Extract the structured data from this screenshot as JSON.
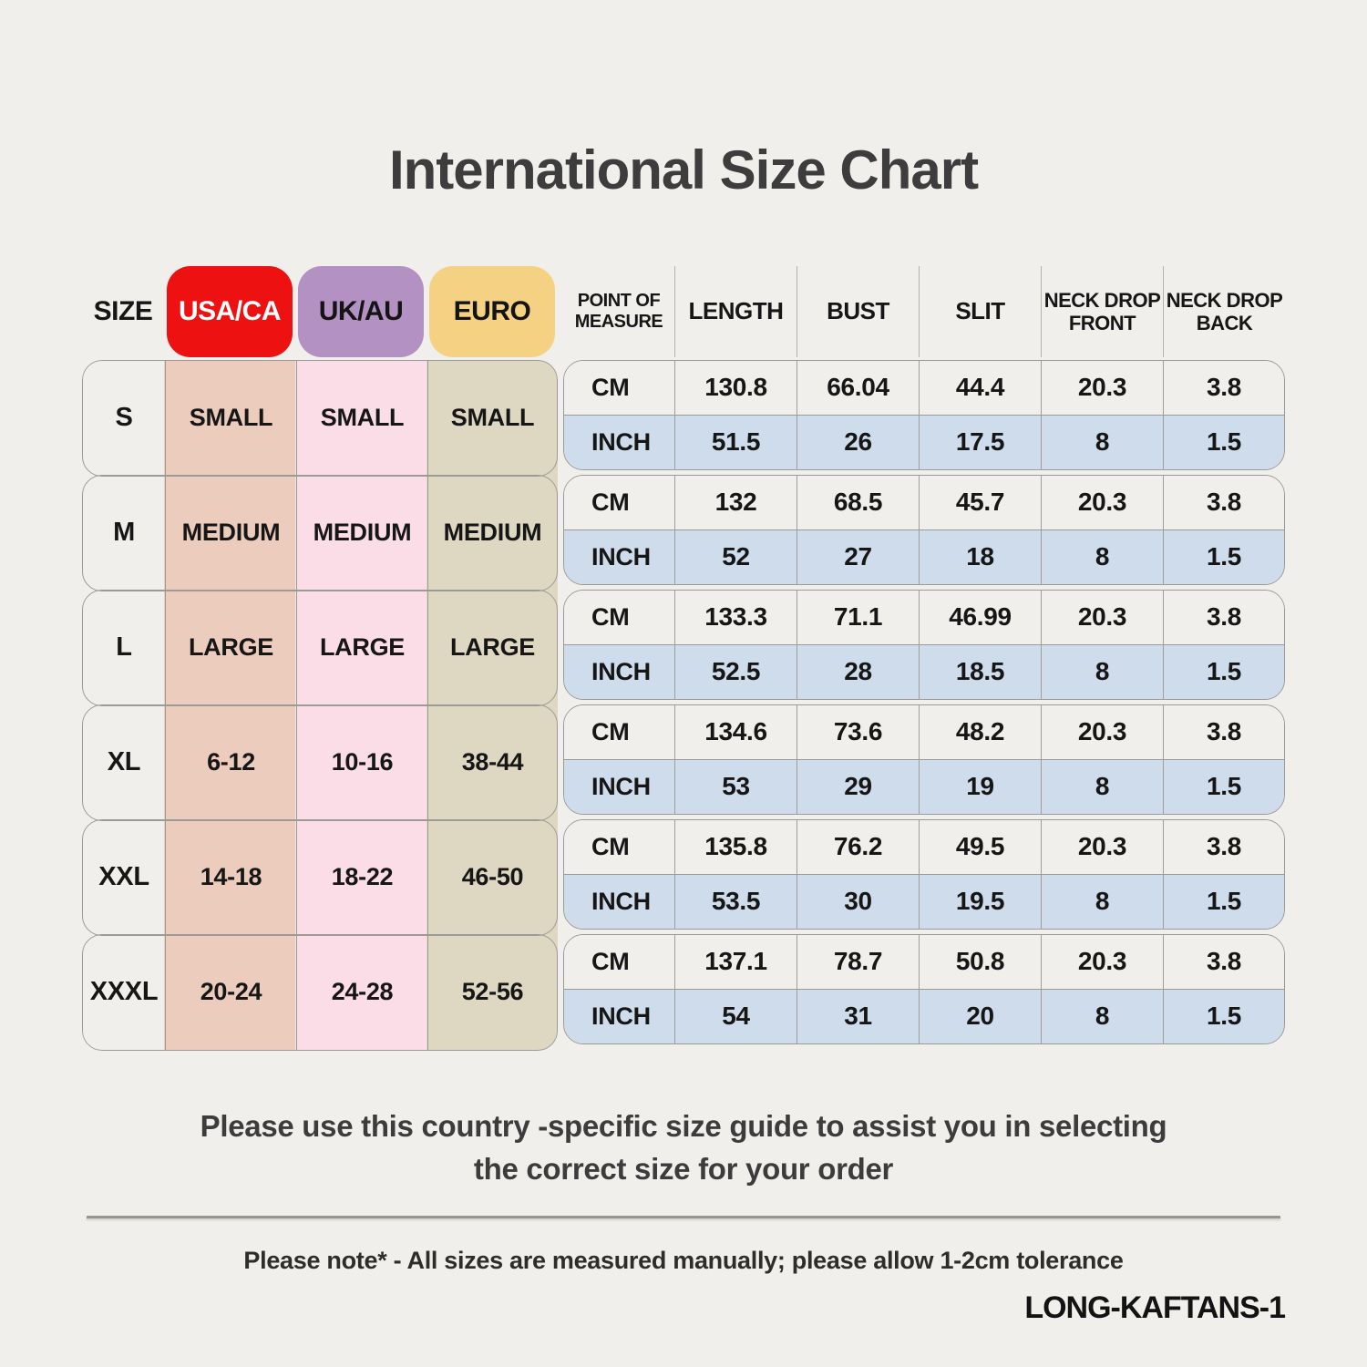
{
  "title": "International Size Chart",
  "size_table": {
    "header": {
      "size": "SIZE",
      "usa": "USA/CA",
      "uk": "UK/AU",
      "euro": "EURO"
    },
    "rows": [
      {
        "size": "S",
        "usa": "SMALL",
        "uk": "SMALL",
        "euro": "SMALL"
      },
      {
        "size": "M",
        "usa": "MEDIUM",
        "uk": "MEDIUM",
        "euro": "MEDIUM"
      },
      {
        "size": "L",
        "usa": "LARGE",
        "uk": "LARGE",
        "euro": "LARGE"
      },
      {
        "size": "XL",
        "usa": "6-12",
        "uk": "10-16",
        "euro": "38-44"
      },
      {
        "size": "XXL",
        "usa": "14-18",
        "uk": "18-22",
        "euro": "46-50"
      },
      {
        "size": "XXXL",
        "usa": "20-24",
        "uk": "24-28",
        "euro": "52-56"
      }
    ]
  },
  "measure_table": {
    "headers": [
      "POINT OF MEASURE",
      "LENGTH",
      "BUST",
      "SLIT",
      "NECK DROP FRONT",
      "NECK DROP BACK"
    ],
    "unit_labels": {
      "cm": "CM",
      "inch": "INCH"
    },
    "rows": [
      {
        "size": "S",
        "cm": [
          "130.8",
          "66.04",
          "44.4",
          "20.3",
          "3.8"
        ],
        "inch": [
          "51.5",
          "26",
          "17.5",
          "8",
          "1.5"
        ]
      },
      {
        "size": "M",
        "cm": [
          "132",
          "68.5",
          "45.7",
          "20.3",
          "3.8"
        ],
        "inch": [
          "52",
          "27",
          "18",
          "8",
          "1.5"
        ]
      },
      {
        "size": "L",
        "cm": [
          "133.3",
          "71.1",
          "46.99",
          "20.3",
          "3.8"
        ],
        "inch": [
          "52.5",
          "28",
          "18.5",
          "8",
          "1.5"
        ]
      },
      {
        "size": "XL",
        "cm": [
          "134.6",
          "73.6",
          "48.2",
          "20.3",
          "3.8"
        ],
        "inch": [
          "53",
          "29",
          "19",
          "8",
          "1.5"
        ]
      },
      {
        "size": "XXL",
        "cm": [
          "135.8",
          "76.2",
          "49.5",
          "20.3",
          "3.8"
        ],
        "inch": [
          "53.5",
          "30",
          "19.5",
          "8",
          "1.5"
        ]
      },
      {
        "size": "XXXL",
        "cm": [
          "137.1",
          "78.7",
          "50.8",
          "20.3",
          "3.8"
        ],
        "inch": [
          "54",
          "31",
          "20",
          "8",
          "1.5"
        ]
      }
    ]
  },
  "footer": {
    "guide_text_line1": "Please use this country -specific size guide to assist you in selecting",
    "guide_text_line2": "the correct size for your order",
    "note_text": "Please note* - All sizes are measured manually; please allow 1-2cm tolerance",
    "product_code": "LONG-KAFTANS-1"
  },
  "colors": {
    "page_bg": "#f0efeb",
    "usa_header_bg": "#ee1111",
    "uk_header_bg": "#b391c2",
    "euro_header_bg": "#f5d283",
    "usa_column_bg": "#ecccbc",
    "uk_column_bg": "#fbdde8",
    "euro_column_bg": "#ded7c1",
    "cm_row_bg": "#f0efeb",
    "inch_row_bg": "#cfdcec",
    "border": "#9c9a96"
  }
}
